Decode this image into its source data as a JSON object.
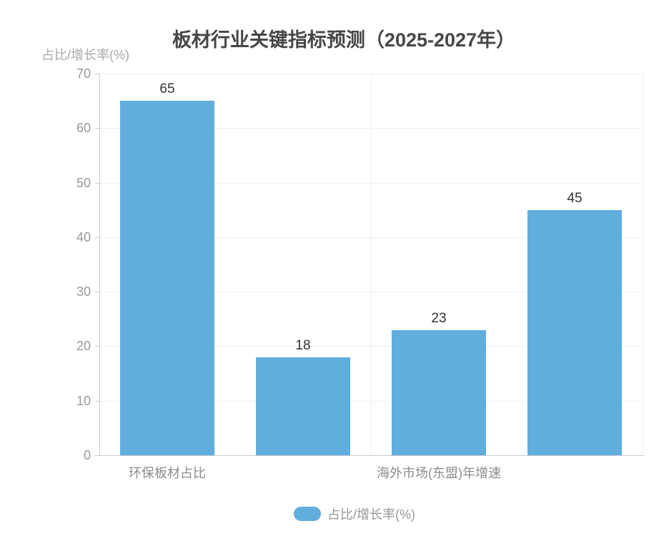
{
  "page": {
    "background_color": "#ffffff"
  },
  "chart_data": {
    "type": "bar",
    "title": "板材行业关键指标预测（2025-2027年）",
    "ylabel": "占比/增长率(%)",
    "xlabel": "",
    "categories": [
      "环保板材占比",
      "",
      "海外市场(东盟)年增速",
      ""
    ],
    "visible_x_tick_labels": [
      {
        "category_index": 0,
        "label": "环保板材占比"
      },
      {
        "category_index": 2,
        "label": "海外市场(东盟)年增速"
      }
    ],
    "series": [
      {
        "name": "占比/增长率(%)",
        "values": [
          65,
          18,
          23,
          45
        ],
        "color": "#61addd"
      }
    ],
    "value_labels_shown": true,
    "ylim": [
      0,
      70
    ],
    "yticks": [
      0,
      10,
      20,
      30,
      40,
      50,
      60,
      70
    ],
    "grid": true,
    "legend_position": "bottom"
  },
  "colors": {
    "bar": "#61addd",
    "title_text": "#464646",
    "axis_tick_text": "#999999",
    "axis_name_text": "#aaaaaa",
    "x_label_text": "#8c8c8c",
    "value_label_text": "#333333",
    "grid_line": "#f0f0f0",
    "axis_line": "#cccccc",
    "legend_text": "#999999"
  }
}
